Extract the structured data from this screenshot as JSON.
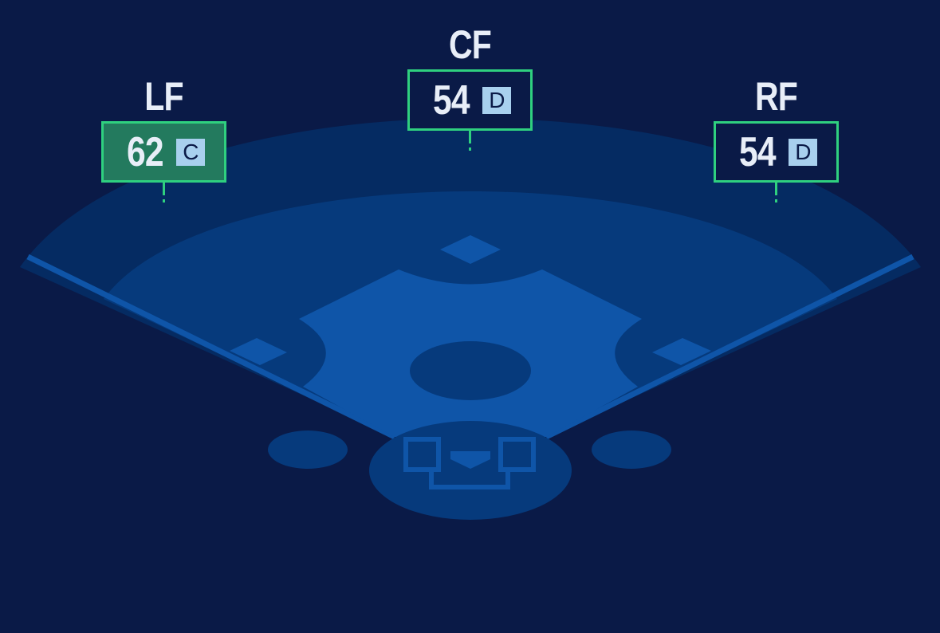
{
  "positions": [
    {
      "name": "LF",
      "value": "62",
      "grade": "C",
      "highlight": true
    },
    {
      "name": "CF",
      "value": "54",
      "grade": "D",
      "highlight": false
    },
    {
      "name": "RF",
      "value": "54",
      "grade": "D",
      "highlight": false
    }
  ],
  "colors": {
    "background": "#0a1a47",
    "highlight_fill": "#237a5e",
    "border": "#2fd07f",
    "grade_badge": "#a8d0ee"
  }
}
